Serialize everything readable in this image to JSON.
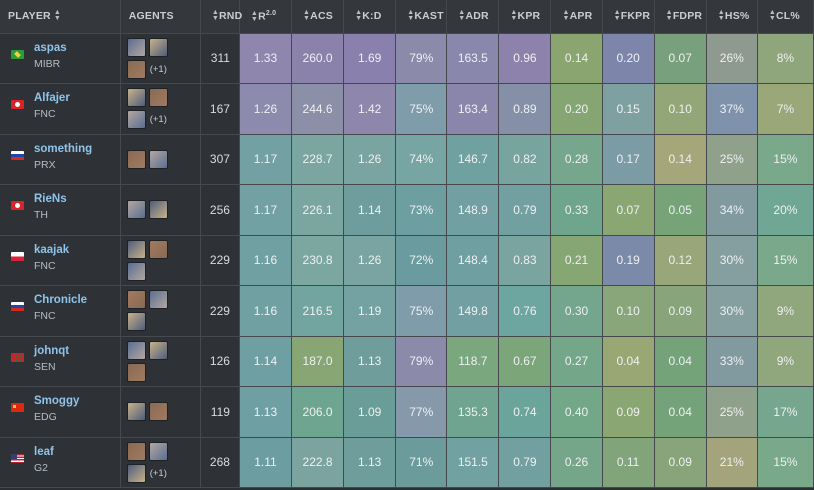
{
  "headers": {
    "player": "PLAYER",
    "agents": "AGENTS",
    "rnd": "RND",
    "rating": "R",
    "rating_version": "2.0",
    "acs": "ACS",
    "kd": "K:D",
    "kast": "KAST",
    "adr": "ADR",
    "kpr": "KPR",
    "apr": "APR",
    "fkpr": "FKPR",
    "fdpr": "FDPR",
    "hs": "HS%",
    "cl": "CL%"
  },
  "sort_icon": "sort-arrows-icon",
  "rows": [
    {
      "name": "aspas",
      "team": "MIBR",
      "flag": "brazil-flag-icon",
      "agents": [
        "agent-1",
        "agent-2",
        "agent-3"
      ],
      "more": "(+1)",
      "rnd": "311",
      "r": "1.33",
      "acs": "260.0",
      "kd": "1.69",
      "kast": "79%",
      "adr": "163.5",
      "kpr": "0.96",
      "apr": "0.14",
      "fkpr": "0.20",
      "fdpr": "0.07",
      "hs": "26%",
      "cl": "8%",
      "colors": [
        "#8e86ad",
        "#8a82ab",
        "#8a80ad",
        "#8b8aaa",
        "#8a87ac",
        "#8d82ab",
        "#8aa56f",
        "#7e85aa",
        "#79a07c",
        "#8e9a90",
        "#8fa57c"
      ]
    },
    {
      "name": "Alfajer",
      "team": "FNC",
      "flag": "turkey-flag-icon",
      "agents": [
        "agent-1",
        "agent-2",
        "agent-3"
      ],
      "more": "(+1)",
      "rnd": "167",
      "r": "1.26",
      "acs": "244.6",
      "kd": "1.42",
      "kast": "75%",
      "adr": "163.4",
      "kpr": "0.89",
      "apr": "0.20",
      "fkpr": "0.15",
      "fdpr": "0.10",
      "hs": "37%",
      "cl": "7%",
      "colors": [
        "#8c8aad",
        "#8c8fa8",
        "#8e86ab",
        "#7f9caa",
        "#8a86ab",
        "#8590a8",
        "#85a572",
        "#7fa0a0",
        "#92a678",
        "#7f92ab",
        "#9aa779"
      ]
    },
    {
      "name": "something",
      "team": "PRX",
      "flag": "russia-flag-icon",
      "agents": [
        "agent-1",
        "agent-2"
      ],
      "more": "",
      "rnd": "307",
      "r": "1.17",
      "acs": "228.7",
      "kd": "1.26",
      "kast": "74%",
      "adr": "146.7",
      "kpr": "0.82",
      "apr": "0.28",
      "fkpr": "0.17",
      "fdpr": "0.14",
      "hs": "25%",
      "cl": "15%",
      "colors": [
        "#73a0a3",
        "#7ba5a0",
        "#7aa4a2",
        "#77a5a3",
        "#6fa1a0",
        "#78a4a0",
        "#76a68c",
        "#7b9ba5",
        "#a5a67a",
        "#8fa08b",
        "#7aa88a"
      ]
    },
    {
      "name": "RieNs",
      "team": "TH",
      "flag": "turkey-flag-icon",
      "agents": [
        "agent-1",
        "agent-2"
      ],
      "more": "",
      "rnd": "256",
      "r": "1.17",
      "acs": "226.1",
      "kd": "1.14",
      "kast": "73%",
      "adr": "148.9",
      "kpr": "0.79",
      "apr": "0.33",
      "fkpr": "0.07",
      "fdpr": "0.05",
      "hs": "34%",
      "cl": "20%",
      "colors": [
        "#73a0a3",
        "#7ba5a0",
        "#6f9d9d",
        "#6d9fa1",
        "#719fa2",
        "#72a0a1",
        "#6fa58c",
        "#8aa673",
        "#77a379",
        "#809aa0",
        "#6fa794"
      ]
    },
    {
      "name": "kaajak",
      "team": "FNC",
      "flag": "poland-flag-icon",
      "agents": [
        "agent-1",
        "agent-2",
        "agent-3"
      ],
      "more": "",
      "rnd": "229",
      "r": "1.16",
      "acs": "230.8",
      "kd": "1.26",
      "kast": "72%",
      "adr": "148.4",
      "kpr": "0.83",
      "apr": "0.21",
      "fkpr": "0.19",
      "fdpr": "0.12",
      "hs": "30%",
      "cl": "15%",
      "colors": [
        "#71a0a3",
        "#7ca6a0",
        "#7aa4a2",
        "#6a9c9f",
        "#709fa2",
        "#79a49f",
        "#86a673",
        "#7c8aa9",
        "#99a679",
        "#859ea0",
        "#7aa88a"
      ]
    },
    {
      "name": "Chronicle",
      "team": "FNC",
      "flag": "russia-flag-icon",
      "agents": [
        "agent-1",
        "agent-2",
        "agent-3"
      ],
      "more": "",
      "rnd": "229",
      "r": "1.16",
      "acs": "216.5",
      "kd": "1.19",
      "kast": "75%",
      "adr": "149.8",
      "kpr": "0.76",
      "apr": "0.30",
      "fkpr": "0.10",
      "fdpr": "0.09",
      "hs": "30%",
      "cl": "9%",
      "colors": [
        "#71a0a3",
        "#72a4a0",
        "#74a1a2",
        "#7f9caa",
        "#729fa2",
        "#6da5a0",
        "#73a68c",
        "#88a67a",
        "#87a47a",
        "#859ea0",
        "#90a67c"
      ]
    },
    {
      "name": "johnqt",
      "team": "SEN",
      "flag": "morocco-flag-icon",
      "agents": [
        "agent-1",
        "agent-2",
        "agent-3"
      ],
      "more": "",
      "rnd": "126",
      "r": "1.14",
      "acs": "187.0",
      "kd": "1.13",
      "kast": "79%",
      "adr": "118.7",
      "kpr": "0.67",
      "apr": "0.27",
      "fkpr": "0.04",
      "fdpr": "0.04",
      "hs": "33%",
      "cl": "9%",
      "colors": [
        "#6e9fa2",
        "#88a673",
        "#6e9d9c",
        "#8b8aaa",
        "#7aa77e",
        "#7aa67a",
        "#74a78a",
        "#99a774",
        "#74a37a",
        "#809aa0",
        "#90a67c"
      ]
    },
    {
      "name": "Smoggy",
      "team": "EDG",
      "flag": "china-flag-icon",
      "agents": [
        "agent-1",
        "agent-2"
      ],
      "more": "",
      "rnd": "119",
      "r": "1.13",
      "acs": "206.0",
      "kd": "1.09",
      "kast": "77%",
      "adr": "135.3",
      "kpr": "0.74",
      "apr": "0.40",
      "fkpr": "0.09",
      "fdpr": "0.04",
      "hs": "25%",
      "cl": "17%",
      "colors": [
        "#6e9fa2",
        "#6da590",
        "#6a9d98",
        "#8599aa",
        "#6fa590",
        "#6aa49a",
        "#72a787",
        "#8aa672",
        "#74a37a",
        "#8fa08b",
        "#76a78e"
      ]
    },
    {
      "name": "leaf",
      "team": "G2",
      "flag": "usa-flag-icon",
      "agents": [
        "agent-1",
        "agent-2",
        "agent-3"
      ],
      "more": "(+1)",
      "rnd": "268",
      "r": "1.11",
      "acs": "222.8",
      "kd": "1.13",
      "kast": "71%",
      "adr": "151.5",
      "kpr": "0.79",
      "apr": "0.26",
      "fkpr": "0.11",
      "fdpr": "0.09",
      "hs": "21%",
      "cl": "15%",
      "colors": [
        "#6c9da0",
        "#7ba4a0",
        "#6e9d9c",
        "#6c9b9c",
        "#72a1a2",
        "#72a0a1",
        "#75a68a",
        "#81a47b",
        "#87a47a",
        "#a3a47b",
        "#7aa88a"
      ]
    }
  ]
}
